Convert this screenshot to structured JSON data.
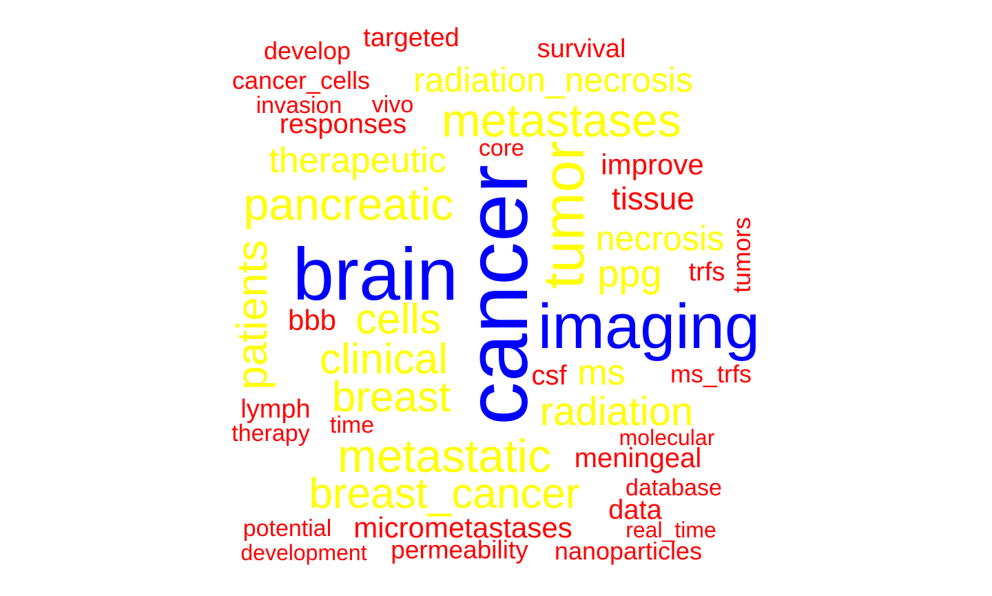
{
  "colors": {
    "tier1": "#0000ff",
    "tier2": "#ffff00",
    "tier3": "#ff0000"
  },
  "words": {
    "cancer": "cancer",
    "brain": "brain",
    "imaging": "imaging",
    "tumor": "tumor",
    "metastases": "metastases",
    "metastatic": "metastatic",
    "pancreatic": "pancreatic",
    "breast_cancer": "breast_cancer",
    "patients": "patients",
    "clinical": "clinical",
    "cells": "cells",
    "breast": "breast",
    "radiation": "radiation",
    "therapeutic": "therapeutic",
    "radiation_necrosis": "radiation_necrosis",
    "necrosis": "necrosis",
    "ppg": "ppg",
    "ms": "ms",
    "micrometastases": "micrometastases",
    "meningeal": "meningeal",
    "tissue": "tissue",
    "improve": "improve",
    "responses": "responses",
    "bbb": "bbb",
    "csf": "csf",
    "permeability": "permeability",
    "nanoparticles": "nanoparticles",
    "data": "data",
    "survival": "survival",
    "targeted": "targeted",
    "develop": "develop",
    "cancer_cells": "cancer_cells",
    "lymph": "lymph",
    "ms_trfs": "ms_trfs",
    "trfs": "trfs",
    "tumors": "tumors",
    "core": "core",
    "invasion": "invasion",
    "vivo": "vivo",
    "therapy": "therapy",
    "time": "time",
    "molecular": "molecular",
    "database": "database",
    "real_time": "real_time",
    "potential": "potential",
    "development": "development"
  }
}
